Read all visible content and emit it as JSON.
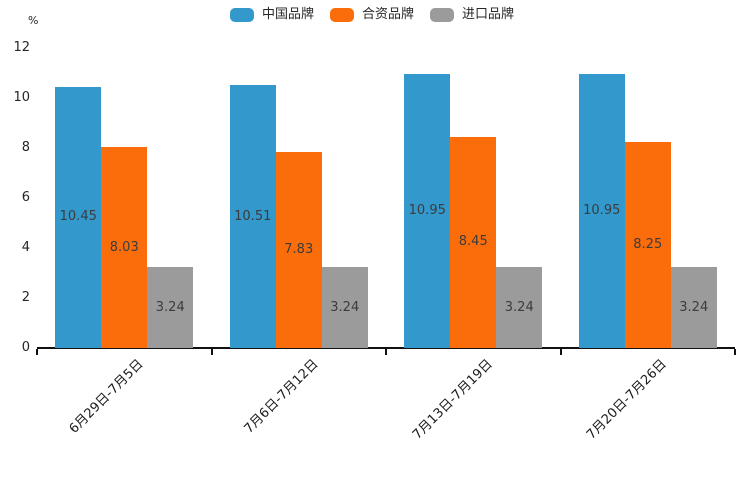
{
  "chart_data": {
    "type": "bar",
    "title": "",
    "xlabel": "",
    "ylabel": "%",
    "categories": [
      "6月29日-7月5日",
      "7月6日-7月12日",
      "7月13日-7月19日",
      "7月20日-7月26日"
    ],
    "series": [
      {
        "name": "中国品牌",
        "color": "#3398CC",
        "values": [
          10.45,
          10.51,
          10.95,
          10.95
        ]
      },
      {
        "name": "合资品牌",
        "color": "#FB6D0A",
        "values": [
          8.03,
          7.83,
          8.45,
          8.25
        ]
      },
      {
        "name": "进口品牌",
        "color": "#9B9B9B",
        "values": [
          3.24,
          3.24,
          3.24,
          3.24
        ]
      }
    ],
    "ylim": [
      0,
      12
    ],
    "yticks": [
      0,
      2,
      4,
      6,
      8,
      10,
      12
    ],
    "grid": false,
    "legend_position": "top-center",
    "value_labels": true,
    "value_label_color": "#3c3c3c",
    "axis_color": "#111111"
  }
}
